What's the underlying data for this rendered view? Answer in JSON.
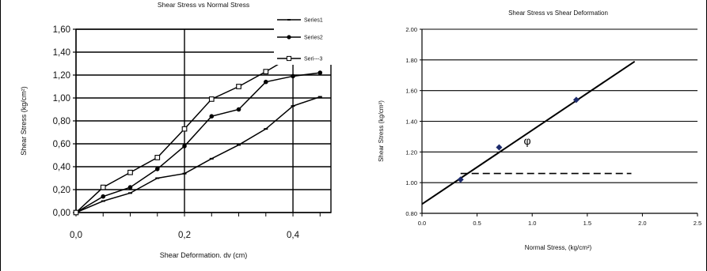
{
  "chart_data": [
    {
      "type": "line",
      "title": "Shear Stress vs Normal Stress",
      "xlabel": "Shear Deformation. dv (cm)",
      "ylabel": "Shear Stress (kg/cm²)",
      "xlim": [
        0,
        0.47
      ],
      "ylim": [
        0,
        1.6
      ],
      "xticks": [
        "0,0",
        "0,2",
        "0,4"
      ],
      "yticks": [
        "0,00",
        "0,20",
        "0,40",
        "0,60",
        "0,80",
        "1,00",
        "1,20",
        "1,40",
        "1,60"
      ],
      "grid": true,
      "legend_position": "top-right",
      "series": [
        {
          "name": "Series1",
          "marker": "dash",
          "x": [
            0,
            0.05,
            0.1,
            0.15,
            0.2,
            0.25,
            0.3,
            0.35,
            0.4,
            0.45
          ],
          "y": [
            0,
            0.1,
            0.17,
            0.3,
            0.34,
            0.47,
            0.59,
            0.73,
            0.93,
            1.01
          ]
        },
        {
          "name": "Series2",
          "marker": "circle",
          "x": [
            0,
            0.05,
            0.1,
            0.15,
            0.2,
            0.25,
            0.3,
            0.35,
            0.4,
            0.45
          ],
          "y": [
            0,
            0.14,
            0.22,
            0.38,
            0.58,
            0.84,
            0.9,
            1.14,
            1.19,
            1.22
          ]
        },
        {
          "name": "Seri---3",
          "marker": "square",
          "x": [
            0,
            0.05,
            0.1,
            0.15,
            0.2,
            0.25,
            0.3,
            0.35,
            0.4
          ],
          "y": [
            0,
            0.22,
            0.35,
            0.48,
            0.73,
            0.99,
            1.1,
            1.23,
            1.37
          ]
        }
      ]
    },
    {
      "type": "scatter",
      "title": "Shear Stress vs Shear Deformation",
      "xlabel": "Normal Stress, (kg/cm²)",
      "ylabel": "Shear Stress (kg/cm²)",
      "xlim": [
        0,
        2.5
      ],
      "ylim": [
        0.8,
        2.0
      ],
      "xticks": [
        "0.0",
        "0.5",
        "1.0",
        "1.5",
        "2.0",
        "2.5"
      ],
      "yticks": [
        "0.80",
        "1.00",
        "1.20",
        "1.40",
        "1.60",
        "1.80",
        "2.00"
      ],
      "grid": true,
      "points": {
        "x": [
          0.35,
          0.7,
          1.4
        ],
        "y": [
          1.02,
          1.23,
          1.54
        ]
      },
      "fit_line": {
        "x": [
          0.0,
          1.93
        ],
        "y": [
          0.86,
          1.79
        ]
      },
      "reference_line": {
        "x": [
          0.35,
          1.9
        ],
        "y": [
          1.06,
          1.06
        ],
        "style": "dashed"
      },
      "annotation": "φ"
    }
  ]
}
